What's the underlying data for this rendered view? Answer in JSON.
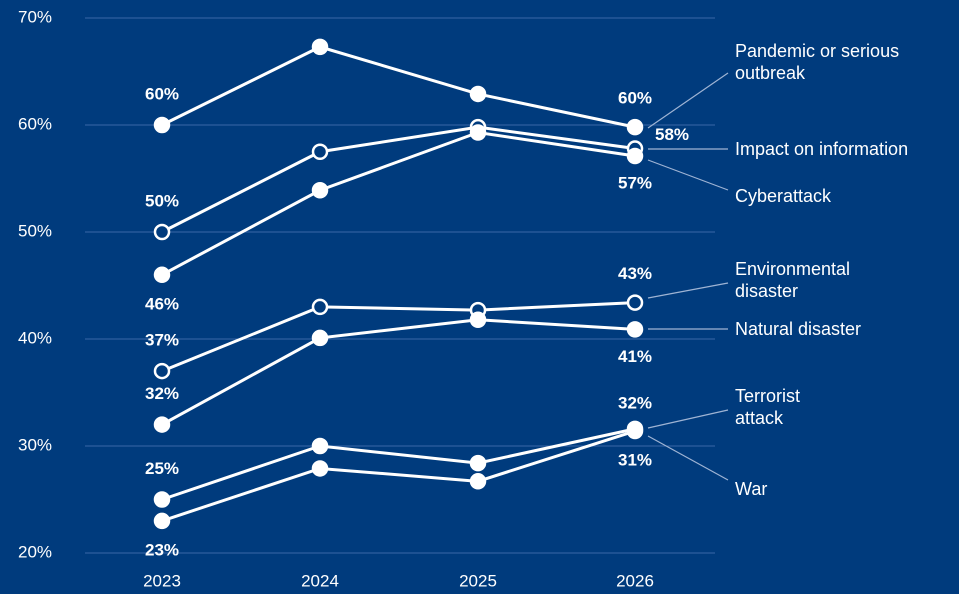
{
  "chart_data": {
    "type": "line",
    "categories": [
      "2023",
      "2024",
      "2025",
      "2026"
    ],
    "ylim": [
      20,
      70
    ],
    "yticks": [
      {
        "value": 20,
        "label": "20%"
      },
      {
        "value": 30,
        "label": "30%"
      },
      {
        "value": 40,
        "label": "40%"
      },
      {
        "value": 50,
        "label": "50%"
      },
      {
        "value": 60,
        "label": "60%"
      },
      {
        "value": 70,
        "label": "70%"
      }
    ],
    "grid": true,
    "series": [
      {
        "name": "Pandemic or serious outbreak",
        "color": "#ffffff",
        "marker": "filled",
        "values": [
          60,
          67.3,
          62.9,
          59.8
        ],
        "value_labels": [
          "60%",
          null,
          null,
          "60%"
        ]
      },
      {
        "name": "Impact on information",
        "color": "#ffffff",
        "marker": "hollow",
        "values": [
          50,
          57.5,
          59.8,
          57.8
        ],
        "value_labels": [
          "50%",
          null,
          null,
          "58%"
        ]
      },
      {
        "name": "Cyberattack",
        "color": "#ffffff",
        "marker": "filled",
        "values": [
          46,
          53.9,
          59.3,
          57.1
        ],
        "value_labels": [
          "46%",
          null,
          null,
          "57%"
        ]
      },
      {
        "name": "Environmental disaster",
        "color": "#ffffff",
        "marker": "hollow",
        "values": [
          37,
          43,
          42.7,
          43.4
        ],
        "value_labels": [
          "37%",
          null,
          null,
          "43%"
        ]
      },
      {
        "name": "Natural disaster",
        "color": "#ffffff",
        "marker": "filled",
        "values": [
          32,
          40.1,
          41.8,
          40.9
        ],
        "value_labels": [
          "32%",
          null,
          null,
          "41%"
        ]
      },
      {
        "name": "Terrorist attack",
        "color": "#ffffff",
        "marker": "filled",
        "values": [
          25,
          30,
          28.4,
          31.6
        ],
        "value_labels": [
          "25%",
          null,
          null,
          "32%"
        ]
      },
      {
        "name": "War",
        "color": "#ffffff",
        "marker": "filled",
        "values": [
          23,
          27.9,
          26.7,
          31.4
        ],
        "value_labels": [
          "23%",
          null,
          null,
          "31%"
        ]
      }
    ]
  }
}
